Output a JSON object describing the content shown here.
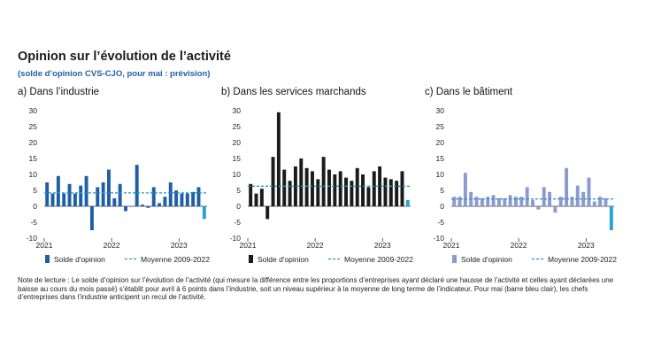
{
  "header": {
    "title": "Opinion sur l’évolution de l’activité",
    "subtitle": "(solde d’opinion CVS-CJO, pour mai : prévision)"
  },
  "note": "Note de lecture : Le solde d’opinion sur l’évolution de l’activité (qui mesure la différence entre les proportions d’entreprises ayant déclaré une hausse de l’activité et celles ayant déclarées une baisse au cours du mois passé) s’établit pour avril à 6 points dans l’industrie, soit un niveau supérieur à la moyenne de long terme de l’indicateur. Pour mai (barre bleu clair), les chefs d’entreprises dans l’industrie anticipent un recul de l’activité.",
  "colors": {
    "forecast": "#29a3d6",
    "average_line": "#2a93c4"
  },
  "chart_data": [
    {
      "type": "bar",
      "title": "a)  Dans l’industrie",
      "color": "#1f5fa8",
      "categories": [
        "2021-01",
        "2021-02",
        "2021-03",
        "2021-04",
        "2021-05",
        "2021-06",
        "2021-07",
        "2021-08",
        "2021-09",
        "2021-10",
        "2021-11",
        "2021-12",
        "2022-01",
        "2022-02",
        "2022-03",
        "2022-04",
        "2022-05",
        "2022-06",
        "2022-07",
        "2022-08",
        "2022-09",
        "2022-10",
        "2022-11",
        "2022-12",
        "2023-01",
        "2023-02",
        "2023-03",
        "2023-04",
        "2023-05"
      ],
      "series": [
        {
          "name": "Solde d'opinion",
          "values": [
            7.5,
            4,
            9.5,
            4,
            7,
            4,
            6.5,
            9.5,
            -7.5,
            6,
            7.5,
            11.5,
            2.5,
            7,
            -1.5,
            0,
            13,
            0.5,
            -0.5,
            6,
            1,
            3,
            7.5,
            5,
            4,
            4,
            4.5,
            6,
            -4
          ]
        }
      ],
      "forecast_index": 28,
      "average": {
        "name": "Moyenne 2009-2022",
        "value": 4.2
      },
      "ylim": [
        -10,
        30
      ],
      "yticks": [
        -10,
        -5,
        0,
        5,
        10,
        15,
        20,
        25,
        30
      ],
      "xticks": [
        {
          "label": "2021",
          "index": 0
        },
        {
          "label": "2022",
          "index": 12
        },
        {
          "label": "2023",
          "index": 24
        }
      ],
      "legend": {
        "series": "Solde d'opinion",
        "average": "Moyenne 2009-2022"
      }
    },
    {
      "type": "bar",
      "title": "b)  Dans les services marchands",
      "color": "#1b1b1b",
      "categories": [
        "2021-01",
        "2021-02",
        "2021-03",
        "2021-04",
        "2021-05",
        "2021-06",
        "2021-07",
        "2021-08",
        "2021-09",
        "2021-10",
        "2021-11",
        "2021-12",
        "2022-01",
        "2022-02",
        "2022-03",
        "2022-04",
        "2022-05",
        "2022-06",
        "2022-07",
        "2022-08",
        "2022-09",
        "2022-10",
        "2022-11",
        "2022-12",
        "2023-01",
        "2023-02",
        "2023-03",
        "2023-04",
        "2023-05"
      ],
      "series": [
        {
          "name": "Solde d'opinion",
          "values": [
            7,
            4,
            5.5,
            -4,
            15.5,
            29.5,
            11.5,
            8,
            12.5,
            15,
            12,
            11,
            8.5,
            15.5,
            11.5,
            10,
            11,
            9,
            8,
            12,
            10,
            6,
            11,
            12.5,
            9,
            8.5,
            8,
            11,
            2
          ]
        }
      ],
      "forecast_index": 28,
      "average": {
        "name": "Moyenne 2009-2022",
        "value": 6.3
      },
      "ylim": [
        -10,
        30
      ],
      "yticks": [
        -10,
        -5,
        0,
        5,
        10,
        15,
        20,
        25,
        30
      ],
      "xticks": [
        {
          "label": "2021",
          "index": 0
        },
        {
          "label": "2022",
          "index": 12
        },
        {
          "label": "2023",
          "index": 24
        }
      ],
      "legend": {
        "series": "Solde d'opinion",
        "average": "Moyenne 2009-2022"
      }
    },
    {
      "type": "bar",
      "title": "c)  Dans le bâtiment",
      "color": "#8c9ad0",
      "categories": [
        "2021-01",
        "2021-02",
        "2021-03",
        "2021-04",
        "2021-05",
        "2021-06",
        "2021-07",
        "2021-08",
        "2021-09",
        "2021-10",
        "2021-11",
        "2021-12",
        "2022-01",
        "2022-02",
        "2022-03",
        "2022-04",
        "2022-05",
        "2022-06",
        "2022-07",
        "2022-08",
        "2022-09",
        "2022-10",
        "2022-11",
        "2022-12",
        "2023-01",
        "2023-02",
        "2023-03",
        "2023-04",
        "2023-05"
      ],
      "series": [
        {
          "name": "Solde d'opinion",
          "values": [
            3,
            3,
            10.5,
            4.5,
            3,
            2.5,
            3,
            3.5,
            2.5,
            2.5,
            3.5,
            3,
            3,
            6,
            2,
            -1,
            6,
            4.5,
            -2,
            3,
            12,
            3,
            6.5,
            4.5,
            9,
            1.5,
            3,
            2.5,
            -7.5
          ]
        }
      ],
      "forecast_index": 28,
      "average": {
        "name": "Moyenne 2009-2022",
        "value": 2.3
      },
      "ylim": [
        -10,
        30
      ],
      "yticks": [
        -10,
        -5,
        0,
        5,
        10,
        15,
        20,
        25,
        30
      ],
      "xticks": [
        {
          "label": "2021",
          "index": 0
        },
        {
          "label": "2022",
          "index": 12
        },
        {
          "label": "2023",
          "index": 24
        }
      ],
      "legend": {
        "series": "Solde d'opinion",
        "average": "Moyenne 2009-2022"
      }
    }
  ]
}
